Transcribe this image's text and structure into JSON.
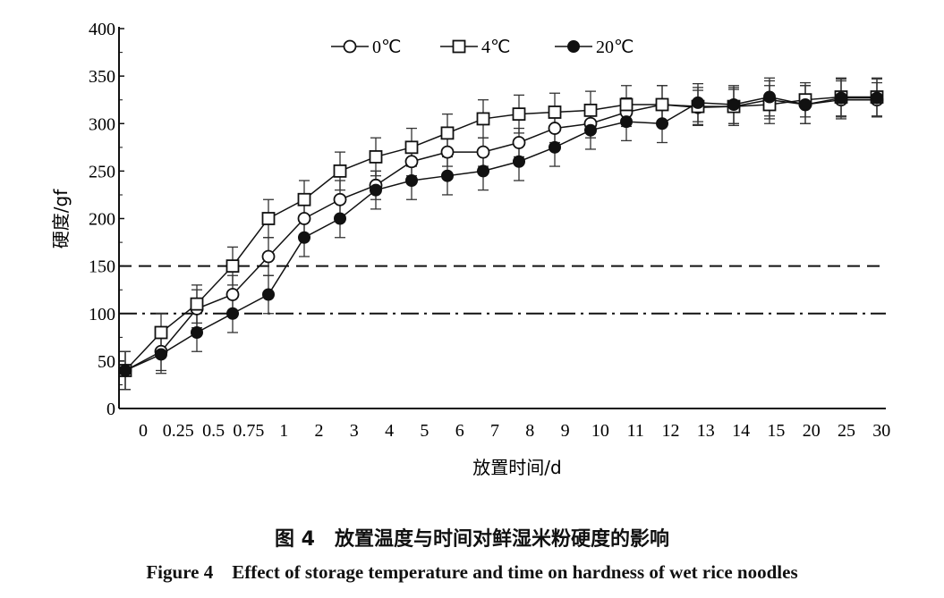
{
  "chart_data": {
    "type": "line",
    "title": "",
    "xlabel": "放置时间/d",
    "ylabel": "硬度/gf",
    "ylim": [
      0,
      400
    ],
    "yticks": [
      0,
      50,
      100,
      150,
      200,
      250,
      300,
      350,
      400
    ],
    "categories": [
      "0",
      "0.25",
      "0.5",
      "0.75",
      "1",
      "2",
      "3",
      "4",
      "5",
      "6",
      "7",
      "8",
      "9",
      "10",
      "11",
      "12",
      "13",
      "14",
      "15",
      "20",
      "25",
      "30"
    ],
    "legend_placement": "top",
    "grid": false,
    "reference_lines": [
      {
        "y": 150,
        "style": "dashed"
      },
      {
        "y": 100,
        "style": "dash-dot"
      }
    ],
    "series": [
      {
        "name": "0℃",
        "marker": "open-circle",
        "values": [
          40,
          60,
          105,
          120,
          160,
          200,
          220,
          235,
          260,
          270,
          270,
          280,
          295,
          300,
          312,
          320,
          317,
          318,
          325,
          320,
          325,
          325
        ],
        "errors": [
          20,
          20,
          20,
          20,
          20,
          20,
          20,
          15,
          15,
          15,
          15,
          15,
          15,
          15,
          15,
          20,
          18,
          18,
          20,
          20,
          20,
          18
        ]
      },
      {
        "name": "4℃",
        "marker": "open-square",
        "values": [
          40,
          80,
          110,
          150,
          200,
          220,
          250,
          265,
          275,
          290,
          305,
          310,
          312,
          314,
          320,
          320,
          318,
          318,
          320,
          325,
          328,
          328
        ],
        "errors": [
          20,
          20,
          20,
          20,
          20,
          20,
          20,
          20,
          20,
          20,
          20,
          20,
          20,
          20,
          20,
          20,
          20,
          20,
          20,
          18,
          20,
          20
        ]
      },
      {
        "name": "20℃",
        "marker": "filled-circle",
        "values": [
          40,
          57,
          80,
          100,
          120,
          180,
          200,
          230,
          240,
          245,
          250,
          260,
          275,
          293,
          302,
          300,
          322,
          320,
          328,
          320,
          327,
          327
        ],
        "errors": [
          20,
          20,
          20,
          20,
          20,
          20,
          20,
          20,
          20,
          20,
          20,
          20,
          20,
          20,
          20,
          20,
          20,
          20,
          20,
          20,
          20,
          20
        ]
      }
    ]
  },
  "caption": {
    "cn": "图 4　放置温度与时间对鲜湿米粉硬度的影响",
    "en": "Figure 4　Effect of storage temperature and time on hardness of wet rice noodles"
  }
}
